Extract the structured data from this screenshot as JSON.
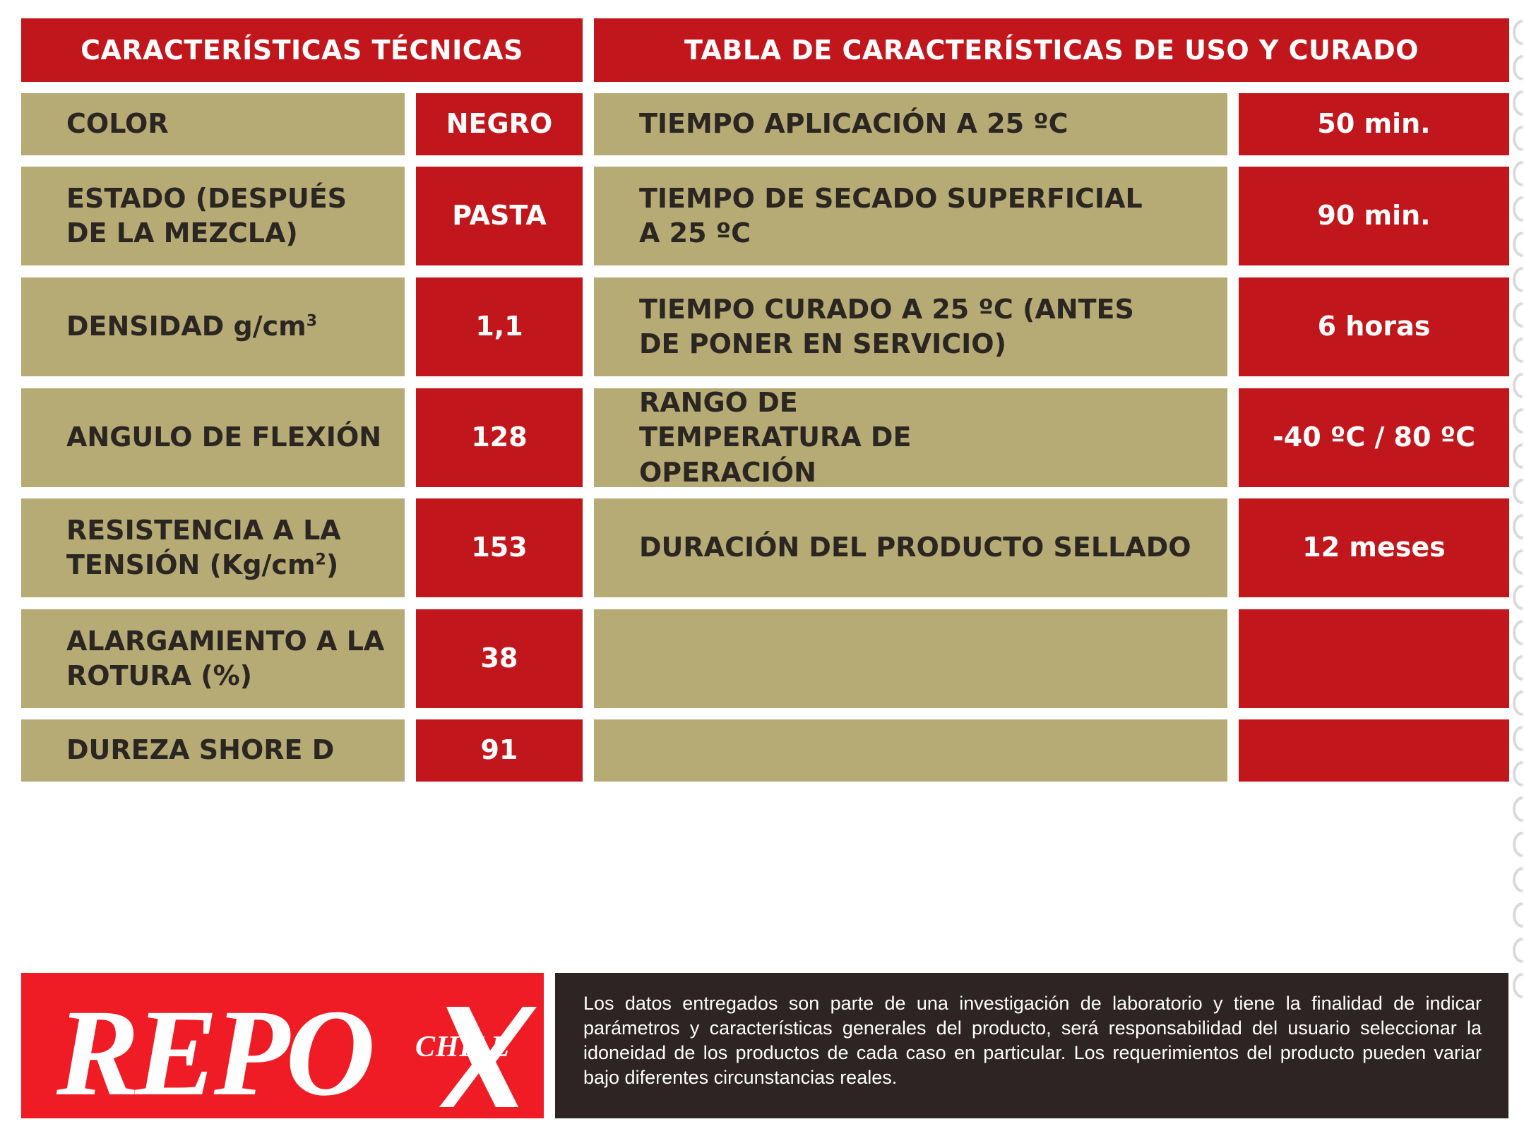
{
  "left_table": {
    "title": "CARACTERÍSTICAS TÉCNICAS",
    "rows": [
      {
        "label": "COLOR",
        "value": "NEGRO"
      },
      {
        "label": "ESTADO (DESPUÉS DE LA MEZCLA)",
        "value": "PASTA"
      },
      {
        "label": "DENSIDAD g/cm",
        "label_sup": "3",
        "value": "1,1"
      },
      {
        "label": "ANGULO DE FLEXIÓN",
        "value": "128"
      },
      {
        "label": "RESISTENCIA A LA TENSIÓN (Kg/cm",
        "label_sup": "2",
        "label_tail": ")",
        "value": "153"
      },
      {
        "label": "ALARGAMIENTO A LA ROTURA (%)",
        "value": "38"
      },
      {
        "label": "DUREZA SHORE D",
        "value": "91"
      }
    ]
  },
  "right_table": {
    "title": "TABLA DE CARACTERÍSTICAS DE USO Y CURADO",
    "rows": [
      {
        "label": "TIEMPO APLICACIÓN A 25 ºC",
        "value": "50 min."
      },
      {
        "label": "TIEMPO DE SECADO SUPERFICIAL A 25 ºC",
        "value": "90 min."
      },
      {
        "label": "TIEMPO CURADO A 25 ºC (ANTES DE PONER EN SERVICIO)",
        "value": "6 horas"
      },
      {
        "label": "RANGO DE TEMPERATURA DE OPERACIÓN",
        "value": "-40 ºC / 80 ºC"
      },
      {
        "label": "DURACIÓN DEL PRODUCTO SELLADO",
        "value": "12 meses"
      },
      {
        "label": "",
        "value": ""
      },
      {
        "label": "",
        "value": ""
      }
    ]
  },
  "logo": {
    "brand": "REPO",
    "suffix": "CHILE",
    "mark_icon": "x-mark-icon",
    "background_color": "#ef1c25"
  },
  "disclaimer": "Los datos entregados son parte de una investigación de laboratorio y tiene la finalidad de indicar parámetros y características generales del producto, será responsabilidad del usuario seleccionar la idoneidad de los productos de cada caso en particular. Los requerimientos del producto pueden variar bajo diferentes circunstancias reales.",
  "colors": {
    "header_red": "#c1171c",
    "cell_gold": "#b6aa75",
    "cell_text_dark": "#2b2622",
    "disclaimer_bg": "#2e2423"
  }
}
